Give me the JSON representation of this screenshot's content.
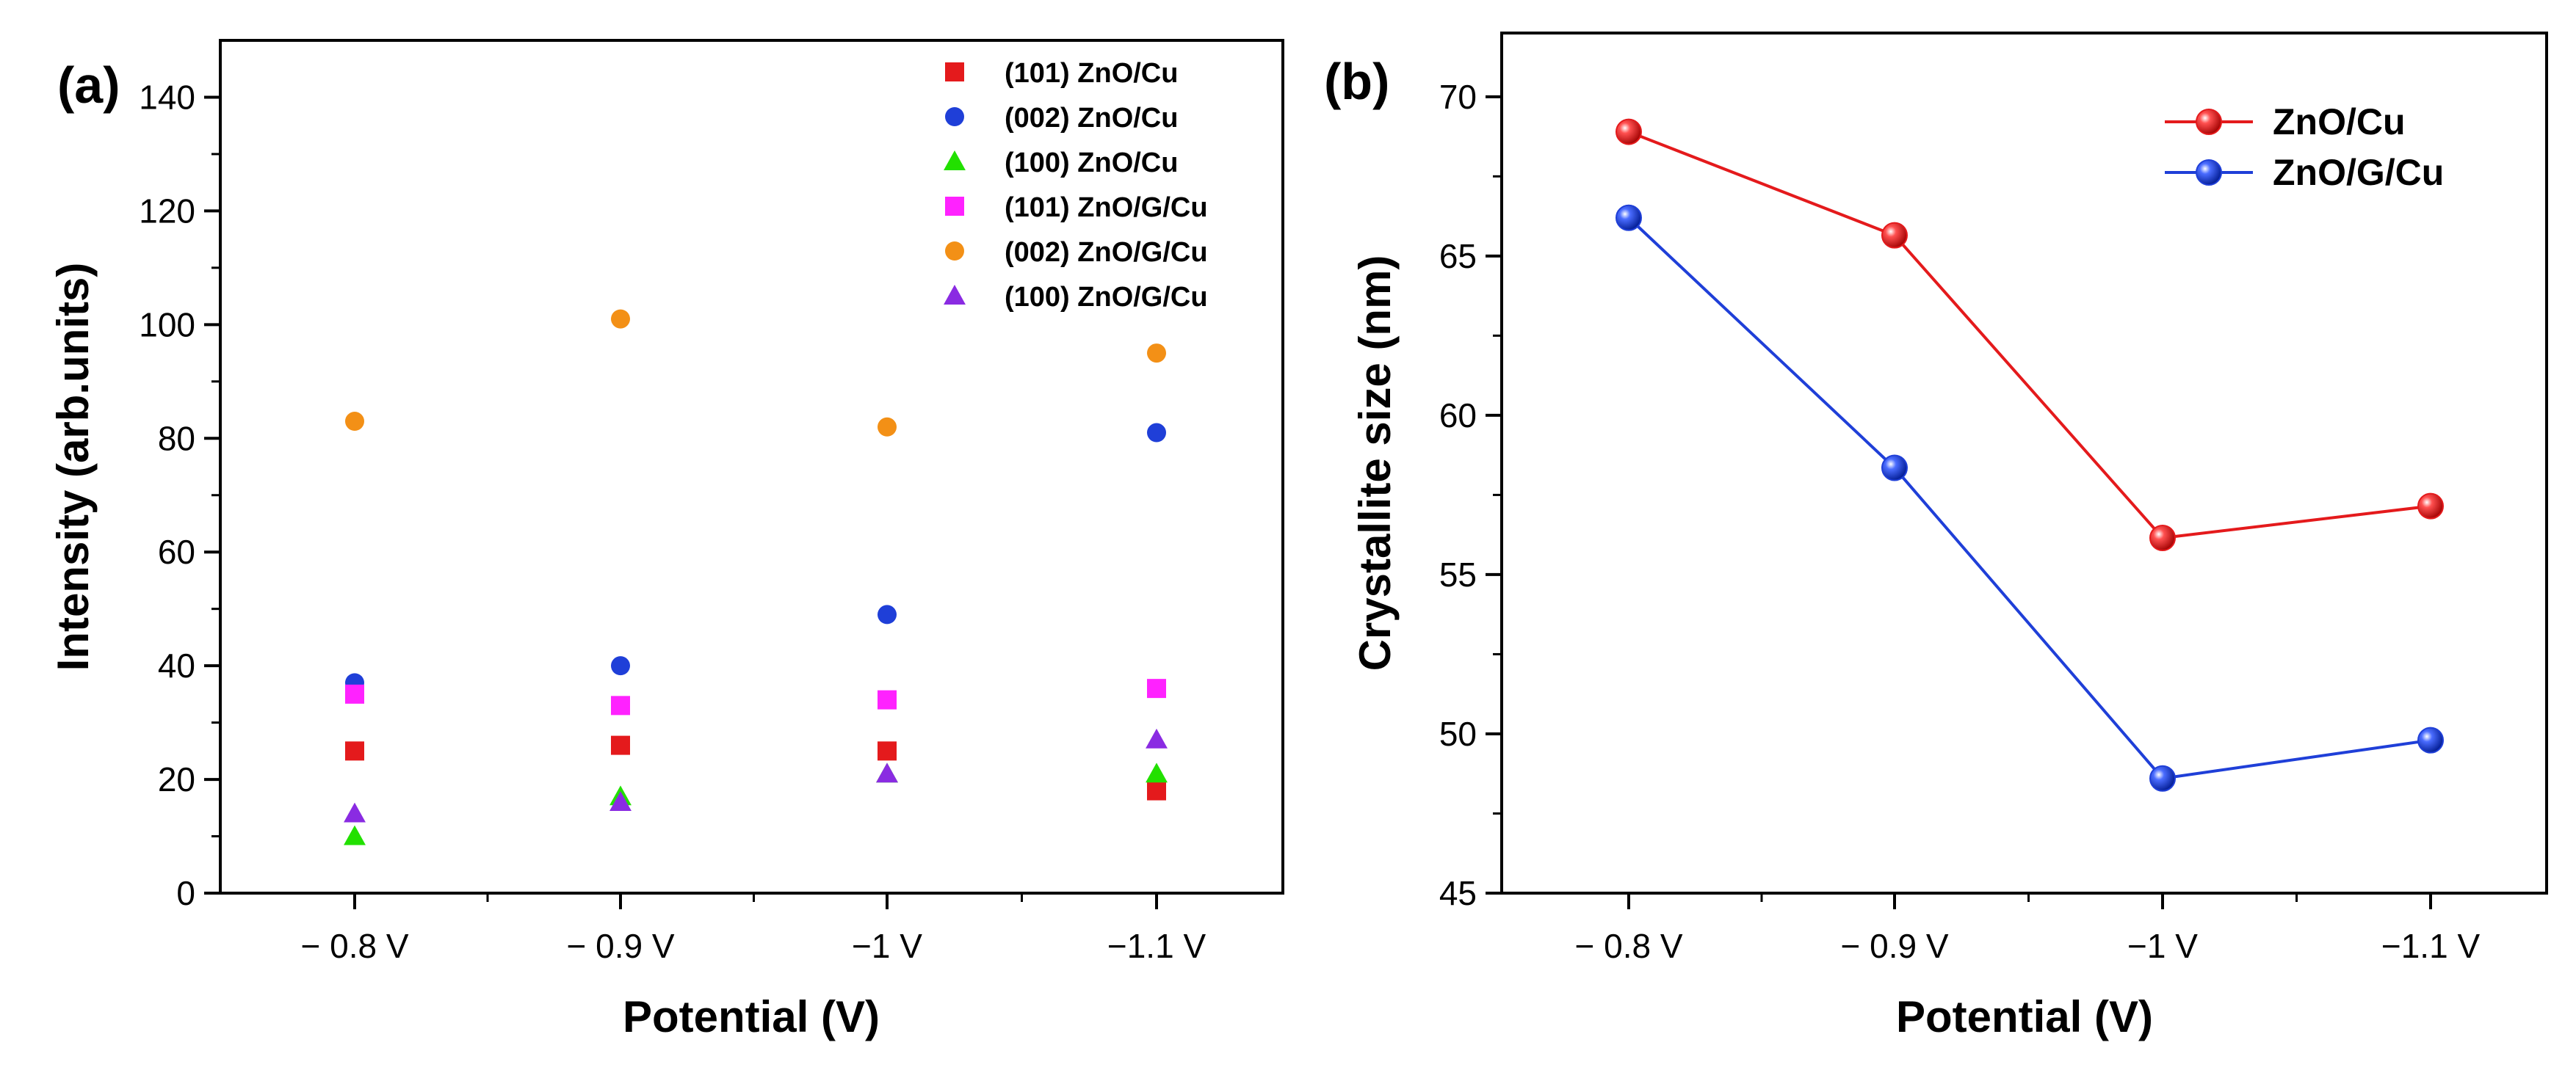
{
  "chart_data": [
    {
      "type": "scatter",
      "panel_label": "(a)",
      "xlabel": "Potential (V)",
      "ylabel": "Intensity (arb.units)",
      "categories": [
        "− 0.8 V",
        "− 0.9 V",
        "−1 V",
        "−1.1 V"
      ],
      "ylim": [
        0,
        150
      ],
      "yticks": [
        0,
        20,
        40,
        60,
        80,
        100,
        120,
        140
      ],
      "grid": false,
      "legend_position": "top-right",
      "series": [
        {
          "name": "(101) ZnO/Cu",
          "marker": "square",
          "color": "#e41a1c",
          "values": [
            25,
            26,
            25,
            18
          ]
        },
        {
          "name": "(002) ZnO/Cu",
          "marker": "circle",
          "color": "#1f3fd8",
          "values": [
            37,
            40,
            49,
            81
          ]
        },
        {
          "name": "(100) ZnO/Cu",
          "marker": "triangle",
          "color": "#22e000",
          "values": [
            10,
            17,
            21,
            21
          ]
        },
        {
          "name": "(101) ZnO/G/Cu",
          "marker": "square",
          "color": "#ff22ff",
          "values": [
            35,
            33,
            34,
            36
          ]
        },
        {
          "name": "(002) ZnO/G/Cu",
          "marker": "circle",
          "color": "#f39016",
          "values": [
            83,
            101,
            82,
            95
          ]
        },
        {
          "name": "(100) ZnO/G/Cu",
          "marker": "triangle",
          "color": "#8a2be2",
          "values": [
            14,
            16,
            21,
            27
          ]
        }
      ]
    },
    {
      "type": "line",
      "panel_label": "(b)",
      "xlabel": "Potential (V)",
      "ylabel": "Crystallite size (nm)",
      "categories": [
        "− 0.8 V",
        "− 0.9 V",
        "−1 V",
        "−1.1 V"
      ],
      "ylim": [
        45,
        72
      ],
      "yticks": [
        45,
        50,
        55,
        60,
        65,
        70
      ],
      "grid": false,
      "legend_position": "top-right",
      "series": [
        {
          "name": "ZnO/Cu",
          "marker": "sphere",
          "color": "#e41a1c",
          "values": [
            68.9,
            65.65,
            56.15,
            57.15
          ]
        },
        {
          "name": "ZnO/G/Cu",
          "marker": "sphere",
          "color": "#1f3fd8",
          "values": [
            66.2,
            58.35,
            48.6,
            49.8
          ]
        }
      ]
    }
  ]
}
